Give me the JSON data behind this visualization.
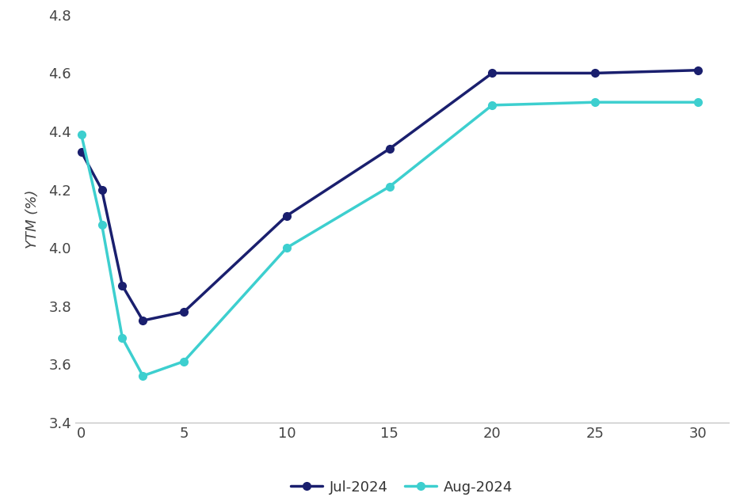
{
  "jul_x": [
    0,
    1,
    2,
    3,
    5,
    10,
    15,
    20,
    25,
    30
  ],
  "jul_y": [
    4.33,
    4.2,
    3.87,
    3.75,
    3.78,
    4.11,
    4.34,
    4.6,
    4.6,
    4.61
  ],
  "aug_x": [
    0,
    1,
    2,
    3,
    5,
    10,
    15,
    20,
    25,
    30
  ],
  "aug_y": [
    4.39,
    4.08,
    3.69,
    3.56,
    3.61,
    4.0,
    4.21,
    4.49,
    4.5,
    4.5
  ],
  "jul_color": "#1a1f6e",
  "aug_color": "#3dcfcf",
  "ylabel": "YTM (%)",
  "ylim": [
    3.4,
    4.8
  ],
  "xlim": [
    -0.3,
    31.5
  ],
  "xticks": [
    0,
    5,
    10,
    15,
    20,
    25,
    30
  ],
  "yticks": [
    3.4,
    3.6,
    3.8,
    4.0,
    4.2,
    4.4,
    4.6,
    4.8
  ],
  "legend_jul": "Jul-2024",
  "legend_aug": "Aug-2024",
  "marker": "o",
  "linewidth": 2.5,
  "markersize": 7,
  "background_color": "#ffffff",
  "grid_color": "#d8d8d8",
  "tick_fontsize": 13,
  "ylabel_fontsize": 13
}
